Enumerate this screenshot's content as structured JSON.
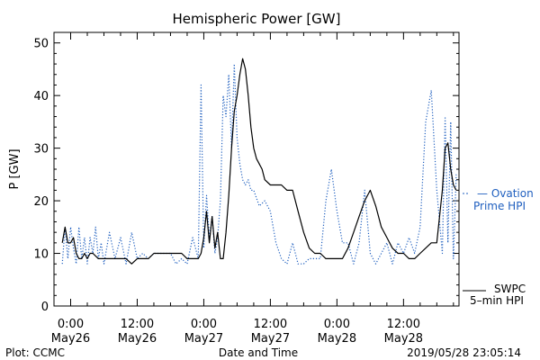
{
  "chart_data": {
    "type": "line",
    "title": "Hemispheric Power [GW]",
    "xlabel": "Date and Time",
    "ylabel": "P [GW]",
    "ylim": [
      0,
      52
    ],
    "xlim_hours": [
      -3,
      70
    ],
    "yticks": [
      0,
      10,
      20,
      30,
      40,
      50
    ],
    "xticks": [
      {
        "hour": 0,
        "time": "0:00",
        "date": "May26"
      },
      {
        "hour": 12,
        "time": "12:00",
        "date": "May26"
      },
      {
        "hour": 24,
        "time": "0:00",
        "date": "May27"
      },
      {
        "hour": 36,
        "time": "12:00",
        "date": "May27"
      },
      {
        "hour": 48,
        "time": "0:00",
        "date": "May28"
      },
      {
        "hour": 60,
        "time": "12:00",
        "date": "May28"
      }
    ],
    "grid": false,
    "series": [
      {
        "name": "SWPC 5-min HPI",
        "style": "solid",
        "color": "#000000",
        "x": [
          -1.5,
          -1,
          -0.5,
          0,
          0.5,
          1,
          1.5,
          2,
          2.5,
          3,
          3.5,
          4,
          5,
          6,
          7,
          8,
          9,
          10,
          11,
          12,
          13,
          14,
          15,
          16,
          17,
          18,
          19,
          20,
          21,
          22,
          23,
          23.5,
          24,
          24.5,
          25,
          25.5,
          26,
          26.5,
          27,
          27.5,
          28,
          28.5,
          29,
          29.5,
          30,
          30.5,
          31,
          31.5,
          32,
          32.5,
          33,
          33.5,
          34,
          34.5,
          35,
          36,
          37,
          38,
          39,
          40,
          41,
          42,
          43,
          44,
          45,
          46,
          47,
          48,
          49,
          50,
          51,
          52,
          53,
          54,
          55,
          56,
          57,
          58,
          59,
          60,
          61,
          62,
          63,
          64,
          65,
          66,
          67,
          67.5,
          68,
          68.5,
          69,
          69.5
        ],
        "y": [
          12,
          15,
          12,
          12,
          13,
          10,
          9,
          9,
          10,
          9,
          10,
          10,
          9,
          9,
          9,
          9,
          9,
          9,
          8,
          9,
          9,
          9,
          10,
          10,
          10,
          10,
          10,
          10,
          9,
          9,
          9,
          10,
          13,
          18,
          12,
          17,
          11,
          14,
          9,
          9,
          14,
          21,
          30,
          37,
          40,
          44,
          47,
          45,
          40,
          34,
          30,
          28,
          27,
          26,
          24,
          23,
          23,
          23,
          22,
          22,
          18,
          14,
          11,
          10,
          10,
          9,
          9,
          9,
          9,
          11,
          14,
          17,
          20,
          22,
          19,
          15,
          13,
          11,
          10,
          10,
          9,
          9,
          10,
          11,
          12,
          12,
          22,
          30,
          31,
          26,
          23,
          22
        ],
        "values": [
          12,
          15,
          12,
          12,
          13,
          10,
          9,
          9,
          10,
          9,
          10,
          10,
          9,
          9,
          9,
          9,
          9,
          9,
          8,
          9,
          9,
          9,
          10,
          10,
          10,
          10,
          10,
          10,
          9,
          9,
          9,
          10,
          13,
          18,
          12,
          17,
          11,
          14,
          9,
          9,
          14,
          21,
          30,
          37,
          40,
          44,
          47,
          45,
          40,
          34,
          30,
          28,
          27,
          26,
          24,
          23,
          23,
          23,
          22,
          22,
          18,
          14,
          11,
          10,
          10,
          9,
          9,
          9,
          9,
          11,
          14,
          17,
          20,
          22,
          19,
          15,
          13,
          11,
          10,
          10,
          9,
          9,
          10,
          11,
          12,
          12,
          22,
          30,
          31,
          26,
          23,
          22
        ]
      },
      {
        "name": "Ovation Prime HPI",
        "style": "dotted",
        "color": "#1f5fbf",
        "x": [
          -1.5,
          -1,
          -0.5,
          0,
          0.5,
          1,
          1.5,
          2,
          2.5,
          3,
          3.5,
          4,
          4.5,
          5,
          5.5,
          6,
          7,
          8,
          9,
          10,
          11,
          12,
          13,
          14,
          15,
          16,
          17,
          18,
          19,
          20,
          21,
          22,
          23,
          23.5,
          24,
          24.5,
          25,
          25.5,
          26,
          26.5,
          27,
          27.5,
          28,
          28.5,
          29,
          29.5,
          30,
          30.5,
          31,
          31.5,
          32,
          32.5,
          33,
          34,
          35,
          36,
          37,
          38,
          39,
          40,
          41,
          42,
          43,
          44,
          45,
          46,
          47,
          48,
          49,
          50,
          51,
          52,
          53,
          54,
          55,
          56,
          57,
          58,
          59,
          60,
          61,
          62,
          63,
          64,
          65,
          66,
          67,
          67.5,
          68,
          68.5,
          69,
          69.5
        ],
        "y": [
          8,
          15,
          9,
          15,
          11,
          8,
          15,
          9,
          13,
          8,
          13,
          10,
          15,
          9,
          12,
          8,
          14,
          9,
          13,
          8,
          14,
          9,
          10,
          9,
          10,
          10,
          10,
          10,
          8,
          9,
          8,
          13,
          9,
          42,
          11,
          21,
          13,
          17,
          10,
          13,
          20,
          40,
          36,
          44,
          30,
          46,
          32,
          27,
          24,
          23,
          24,
          22,
          22,
          19,
          20,
          18,
          12,
          9,
          8,
          12,
          8,
          8,
          9,
          9,
          9,
          20,
          26,
          18,
          12,
          12,
          8,
          12,
          22,
          10,
          8,
          10,
          12,
          8,
          12,
          10,
          13,
          10,
          15,
          35,
          41,
          22,
          10,
          36,
          12,
          35,
          9,
          25
        ],
        "values": [
          8,
          15,
          9,
          15,
          11,
          8,
          15,
          9,
          13,
          8,
          13,
          10,
          15,
          9,
          12,
          8,
          14,
          9,
          13,
          8,
          14,
          9,
          10,
          9,
          10,
          10,
          10,
          10,
          8,
          9,
          8,
          13,
          9,
          42,
          11,
          21,
          13,
          17,
          10,
          13,
          20,
          40,
          36,
          44,
          30,
          46,
          32,
          27,
          24,
          23,
          24,
          22,
          22,
          19,
          20,
          18,
          12,
          9,
          8,
          12,
          8,
          8,
          9,
          9,
          9,
          20,
          26,
          18,
          12,
          12,
          8,
          12,
          22,
          10,
          8,
          10,
          12,
          8,
          12,
          10,
          13,
          10,
          15,
          35,
          41,
          22,
          10,
          36,
          12,
          35,
          9,
          25
        ]
      }
    ],
    "legend": {
      "ovation_line1": "— Ovation",
      "ovation_line2": "Prime HPI",
      "swpc_line1": "SWPC",
      "swpc_line2": "5–min HPI"
    }
  },
  "footer": {
    "left": "Plot: CCMC",
    "center": "Date and Time",
    "right": "2019/05/28 23:05:14"
  },
  "colors": {
    "ovation": "#1f5fbf",
    "swpc": "#000000"
  }
}
